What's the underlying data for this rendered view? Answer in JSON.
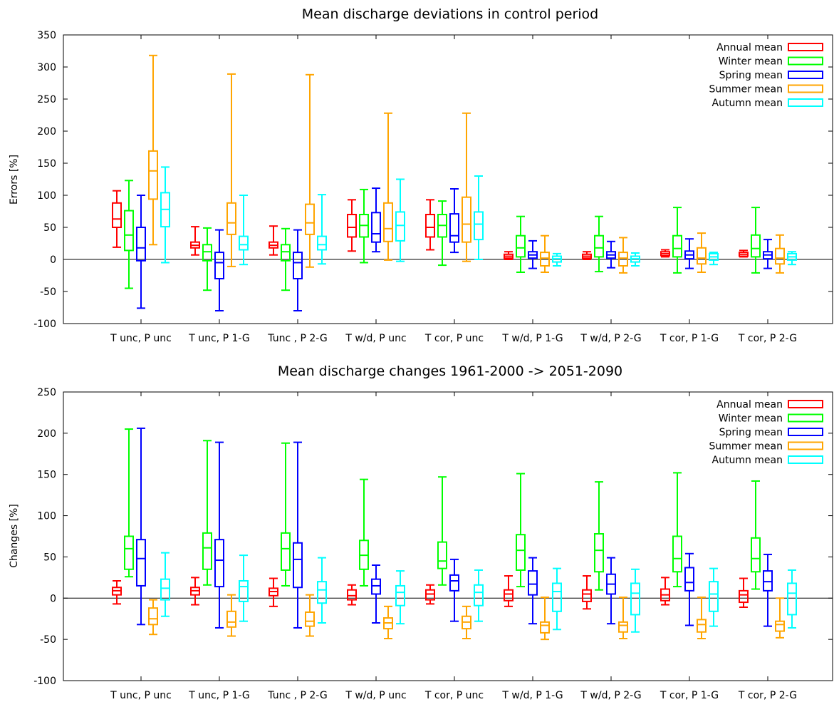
{
  "chart_data": [
    {
      "type": "box",
      "title": "Mean discharge deviations in control period",
      "ylabel": "Errors [%]",
      "ylim": [
        -100,
        350
      ],
      "yticks": [
        -100,
        -50,
        0,
        50,
        100,
        150,
        200,
        250,
        300,
        350
      ],
      "grid": false,
      "legend_position": "top-right",
      "categories": [
        "T unc, P unc",
        "T unc, P 1-G",
        "Tunc , P 2-G",
        "T w/d, P unc",
        "T cor, P unc",
        "T w/d, P 1-G",
        "T w/d, P 2-G",
        "T cor, P 1-G",
        "T cor, P 2-G"
      ],
      "series": [
        {
          "name": "Annual mean",
          "color": "#ff0000",
          "boxes": [
            [
              19,
              50,
              63,
              88,
              107
            ],
            [
              7,
              18,
              22,
              27,
              51
            ],
            [
              7,
              18,
              22,
              27,
              52
            ],
            [
              13,
              35,
              50,
              70,
              93
            ],
            [
              15,
              35,
              50,
              70,
              93
            ],
            [
              0,
              2,
              5,
              8,
              12
            ],
            [
              0,
              2,
              5,
              8,
              12
            ],
            [
              4,
              6,
              9,
              12,
              15
            ],
            [
              4,
              5,
              8,
              11,
              14
            ]
          ]
        },
        {
          "name": "Winter mean",
          "color": "#00ff00",
          "boxes": [
            [
              -45,
              14,
              38,
              76,
              123
            ],
            [
              -48,
              -2,
              12,
              23,
              49
            ],
            [
              -48,
              -2,
              12,
              23,
              48
            ],
            [
              -5,
              35,
              53,
              70,
              109
            ],
            [
              -9,
              35,
              53,
              70,
              91
            ],
            [
              -20,
              4,
              18,
              37,
              67
            ],
            [
              -19,
              4,
              18,
              37,
              67
            ],
            [
              -21,
              4,
              17,
              37,
              81
            ],
            [
              -21,
              4,
              17,
              38,
              81
            ]
          ]
        },
        {
          "name": "Spring mean",
          "color": "#0000ff",
          "boxes": [
            [
              -76,
              -2,
              18,
              50,
              100
            ],
            [
              -80,
              -30,
              -5,
              11,
              46
            ],
            [
              -80,
              -30,
              -5,
              11,
              46
            ],
            [
              12,
              27,
              40,
              73,
              111
            ],
            [
              11,
              27,
              37,
              71,
              110
            ],
            [
              -14,
              2,
              7,
              12,
              29
            ],
            [
              -13,
              2,
              7,
              12,
              28
            ],
            [
              -14,
              1,
              7,
              13,
              32
            ],
            [
              -14,
              1,
              7,
              12,
              31
            ]
          ]
        },
        {
          "name": "Summer mean",
          "color": "#ffa500",
          "boxes": [
            [
              23,
              94,
              138,
              169,
              318
            ],
            [
              -11,
              39,
              57,
              88,
              289
            ],
            [
              -12,
              39,
              57,
              86,
              288
            ],
            [
              -1,
              28,
              48,
              88,
              228
            ],
            [
              -3,
              27,
              55,
              97,
              228
            ],
            [
              -20,
              -10,
              2,
              11,
              37
            ],
            [
              -21,
              -10,
              2,
              11,
              34
            ],
            [
              -20,
              -7,
              2,
              18,
              41
            ],
            [
              -21,
              -7,
              2,
              17,
              38
            ]
          ]
        },
        {
          "name": "Autumn mean",
          "color": "#00ffff",
          "boxes": [
            [
              -5,
              51,
              78,
              104,
              144
            ],
            [
              -8,
              15,
              23,
              36,
              100
            ],
            [
              -7,
              15,
              23,
              36,
              101
            ],
            [
              -3,
              29,
              53,
              74,
              125
            ],
            [
              0,
              31,
              55,
              74,
              130
            ],
            [
              -10,
              -4,
              1,
              5,
              9
            ],
            [
              -10,
              -4,
              1,
              5,
              10
            ],
            [
              -8,
              -1,
              4,
              9,
              11
            ],
            [
              -8,
              -1,
              4,
              9,
              12
            ]
          ]
        }
      ]
    },
    {
      "type": "box",
      "title": "Mean discharge changes 1961-2000 -> 2051-2090",
      "ylabel": "Changes [%]",
      "ylim": [
        -100,
        250
      ],
      "yticks": [
        -100,
        -50,
        0,
        50,
        100,
        150,
        200,
        250
      ],
      "grid": false,
      "legend_position": "top-right",
      "categories": [
        "T unc, P unc",
        "T unc, P 1-G",
        "Tunc , P 2-G",
        "T w/d, P unc",
        "T cor, P unc",
        "T w/d, P 1-G",
        "T w/d, P 2-G",
        "T cor, P 1-G",
        "T cor, P 2-G"
      ],
      "series": [
        {
          "name": "Annual mean",
          "color": "#ff0000",
          "boxes": [
            [
              -7,
              4,
              9,
              13,
              21
            ],
            [
              -8,
              4,
              9,
              13,
              25
            ],
            [
              -10,
              3,
              8,
              12,
              24
            ],
            [
              -8,
              -2,
              3,
              10,
              16
            ],
            [
              -7,
              -2,
              5,
              10,
              16
            ],
            [
              -10,
              -3,
              5,
              10,
              27
            ],
            [
              -13,
              -4,
              5,
              10,
              27
            ],
            [
              -8,
              -3,
              4,
              11,
              25
            ],
            [
              -11,
              -5,
              4,
              9,
              24
            ]
          ]
        },
        {
          "name": "Winter mean",
          "color": "#00ff00",
          "boxes": [
            [
              26,
              35,
              60,
              75,
              205
            ],
            [
              16,
              35,
              61,
              79,
              191
            ],
            [
              15,
              34,
              60,
              79,
              188
            ],
            [
              15,
              35,
              52,
              70,
              144
            ],
            [
              16,
              36,
              45,
              68,
              147
            ],
            [
              14,
              34,
              58,
              77,
              151
            ],
            [
              10,
              32,
              58,
              78,
              141
            ],
            [
              14,
              32,
              48,
              75,
              152
            ],
            [
              11,
              32,
              48,
              73,
              142
            ]
          ]
        },
        {
          "name": "Spring mean",
          "color": "#0000ff",
          "boxes": [
            [
              -32,
              15,
              48,
              71,
              206
            ],
            [
              -36,
              14,
              46,
              71,
              189
            ],
            [
              -36,
              13,
              47,
              67,
              189
            ],
            [
              -30,
              5,
              15,
              23,
              40
            ],
            [
              -28,
              9,
              21,
              28,
              47
            ],
            [
              -31,
              4,
              17,
              33,
              49
            ],
            [
              -31,
              5,
              17,
              29,
              49
            ],
            [
              -33,
              9,
              19,
              37,
              54
            ],
            [
              -34,
              9,
              20,
              33,
              53
            ]
          ]
        },
        {
          "name": "Summer mean",
          "color": "#ffa500",
          "boxes": [
            [
              -44,
              -32,
              -25,
              -12,
              -2
            ],
            [
              -46,
              -35,
              -29,
              -16,
              4
            ],
            [
              -46,
              -34,
              -28,
              -17,
              4
            ],
            [
              -49,
              -37,
              -30,
              -24,
              -10
            ],
            [
              -49,
              -37,
              -29,
              -22,
              -10
            ],
            [
              -50,
              -42,
              -33,
              -29,
              1
            ],
            [
              -49,
              -41,
              -33,
              -29,
              1
            ],
            [
              -49,
              -41,
              -32,
              -26,
              1
            ],
            [
              -48,
              -40,
              -32,
              -28,
              0
            ]
          ]
        },
        {
          "name": "Autumn mean",
          "color": "#00ffff",
          "boxes": [
            [
              -22,
              -2,
              12,
              23,
              55
            ],
            [
              -28,
              -4,
              14,
              21,
              52
            ],
            [
              -30,
              -6,
              10,
              20,
              49
            ],
            [
              -31,
              -9,
              7,
              15,
              33
            ],
            [
              -28,
              -9,
              7,
              16,
              34
            ],
            [
              -38,
              -16,
              8,
              18,
              36
            ],
            [
              -41,
              -20,
              6,
              18,
              35
            ],
            [
              -34,
              -16,
              5,
              20,
              36
            ],
            [
              -36,
              -20,
              6,
              18,
              34
            ]
          ]
        }
      ]
    }
  ]
}
